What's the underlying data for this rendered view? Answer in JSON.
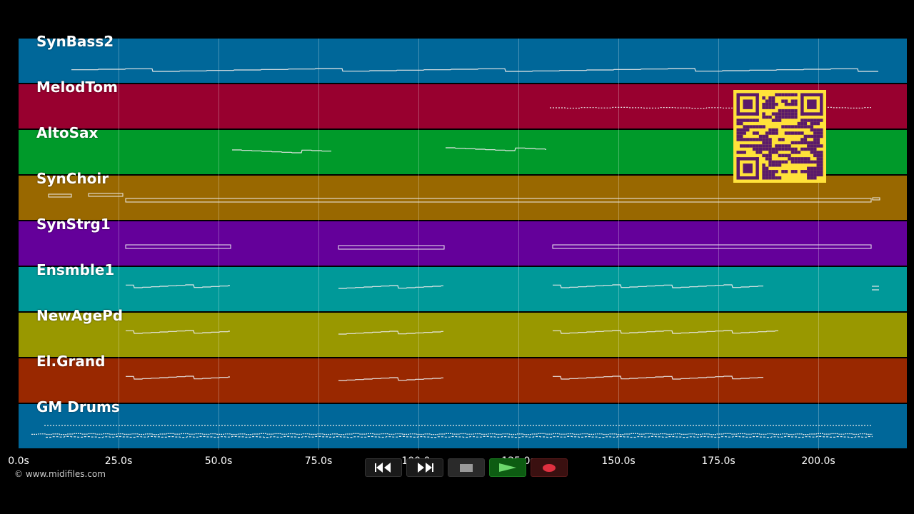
{
  "tracks": [
    {
      "name": "SynBass2",
      "color": "#006799"
    },
    {
      "name": "MelodTom",
      "color": "#98002f"
    },
    {
      "name": "AltoSax",
      "color": "#009a2a"
    },
    {
      "name": "SynChoir",
      "color": "#996800"
    },
    {
      "name": "SynStrg1",
      "color": "#64009a"
    },
    {
      "name": "Ensmble1",
      "color": "#009999"
    },
    {
      "name": "NewAgePd",
      "color": "#999800"
    },
    {
      "name": "El.Grand",
      "color": "#992800"
    },
    {
      "name": "GM Drums",
      "color": "#006799"
    }
  ],
  "timeline": {
    "ticks": [
      "0.0s",
      "25.0s",
      "50.0s",
      "75.0s",
      "100.0s",
      "125.0s",
      "150.0s",
      "175.0s",
      "200.0s"
    ]
  },
  "credit": "© www.midifiles.com",
  "transport": {
    "rewind": "rewind-icon",
    "fast_forward": "fast-forward-icon",
    "stop": "stop-icon",
    "play": "play-icon",
    "record": "record-icon"
  },
  "colors": {
    "background": "#000000",
    "qr_background": "#ffe23a",
    "qr_foreground": "#5a1a6a"
  }
}
